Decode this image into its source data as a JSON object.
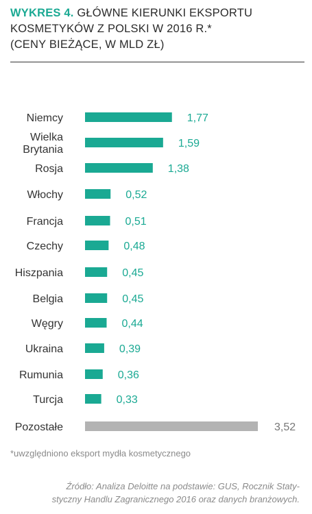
{
  "header": {
    "label": "WYKRES 4.",
    "line1": "GŁÓWNE KIERUNKI EKSPORTU",
    "line2": "KOSMETYKÓW Z POLSKI W 2016 R.*",
    "line3": "(CENY BIEŻĄCE, W MLD ZŁ)"
  },
  "colors": {
    "accent": "#1aa993",
    "other": "#b3b3b3",
    "other_label": "#777777"
  },
  "chart_data": {
    "type": "bar",
    "orientation": "horizontal",
    "categories": [
      [
        "Niemcy"
      ],
      [
        "Wielka",
        "Brytania"
      ],
      [
        "Rosja"
      ],
      [
        "Włochy"
      ],
      [
        "Francja"
      ],
      [
        "Czechy"
      ],
      [
        "Hiszpania"
      ],
      [
        "Belgia"
      ],
      [
        "Węgry"
      ],
      [
        "Ukraina"
      ],
      [
        "Rumunia"
      ],
      [
        "Turcja"
      ],
      [
        "Pozostałe"
      ]
    ],
    "values": [
      1.77,
      1.59,
      1.38,
      0.52,
      0.51,
      0.48,
      0.45,
      0.45,
      0.44,
      0.39,
      0.36,
      0.33,
      3.52
    ],
    "value_labels": [
      "1,77",
      "1,59",
      "1,38",
      "0,52",
      "0,51",
      "0,48",
      "0,45",
      "0,45",
      "0,44",
      "0,39",
      "0,36",
      "0,33",
      "3,52"
    ],
    "highlight": [
      true,
      true,
      true,
      true,
      true,
      true,
      true,
      true,
      true,
      true,
      true,
      true,
      false
    ]
  },
  "footnote": "*uwzględniono eksport mydła kosmetycznego",
  "source_lines": [
    "Źródło: Analiza Deloitte na podstawie: GUS, Rocznik Staty-",
    "styczny Handlu Zagranicznego 2016 oraz danych branżowych."
  ]
}
